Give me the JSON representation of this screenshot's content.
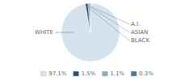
{
  "chart_data": {
    "type": "pie",
    "categories": [
      "WHITE",
      "BLACK",
      "ASIAN",
      "A.I."
    ],
    "values": [
      97.1,
      1.5,
      1.1,
      0.3
    ],
    "value_labels": [
      "97.1%",
      "1.5%",
      "1.1%",
      "0.3%"
    ],
    "colors": [
      "#d5e3ee",
      "#2d4f6b",
      "#8aaec2",
      "#4a7a96"
    ],
    "legend": "bottom"
  }
}
